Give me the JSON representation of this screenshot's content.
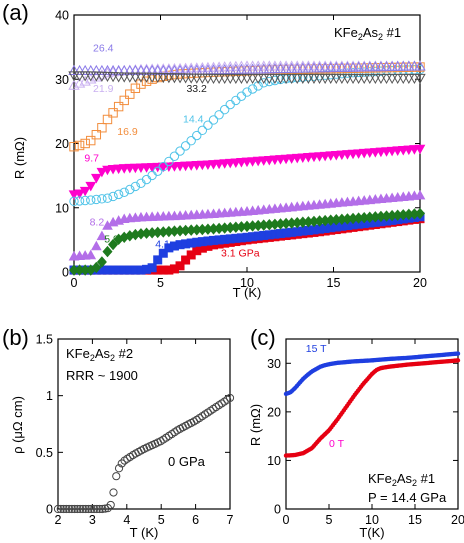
{
  "chart_data": [
    {
      "panel": "(a)",
      "type": "scatter",
      "sample_label": {
        "prefix": "KFe",
        "sub1": "2",
        "mid": "As",
        "sub2": "2",
        "suffix": " #1"
      },
      "xlabel": "T (K)",
      "ylabel": "R (mΩ)",
      "xlim": [
        0,
        20
      ],
      "ylim": [
        0,
        40
      ],
      "xticks": [
        "0",
        "5",
        "10",
        "15",
        "20"
      ],
      "yticks": [
        "0",
        "10",
        "20",
        "30",
        "40"
      ],
      "series": [
        {
          "name": "3.1 GPa",
          "color": "#e60012",
          "marker": "square-filled",
          "x": [
            0,
            2,
            4,
            5.5,
            6,
            6.5,
            7,
            7.5,
            8,
            9,
            10,
            12,
            14,
            16,
            18,
            20
          ],
          "y": [
            0.3,
            0.3,
            0.3,
            0.3,
            0.6,
            2,
            3.2,
            3.8,
            4.2,
            4.6,
            5,
            5.6,
            6.2,
            6.9,
            7.6,
            8.3
          ]
        },
        {
          "name": "4.1",
          "color": "#1f3fe0",
          "marker": "square-filled",
          "x": [
            0,
            2,
            4,
            4.5,
            5,
            5.5,
            6,
            7,
            8,
            10,
            12,
            14,
            16,
            18,
            20
          ],
          "y": [
            0.3,
            0.3,
            0.3,
            0.6,
            2.5,
            3.8,
            4.2,
            4.6,
            4.9,
            5.4,
            6,
            6.6,
            7.3,
            7.9,
            8.6
          ]
        },
        {
          "name": "5.9",
          "color": "#1e7a1e",
          "marker": "diamond-filled",
          "x": [
            0,
            1,
            1.5,
            2,
            2.5,
            3,
            3.5,
            4,
            5,
            6,
            8,
            10,
            12,
            14,
            16,
            18,
            20
          ],
          "y": [
            0.3,
            0.3,
            1,
            3.5,
            5,
            5.5,
            5.8,
            6,
            6.2,
            6.4,
            6.7,
            7.1,
            7.5,
            7.9,
            8.3,
            8.7,
            9.1
          ]
        },
        {
          "name": "8.2",
          "color": "#b36ee8",
          "marker": "triangle-up-filled",
          "x": [
            0,
            1,
            1.5,
            2,
            3,
            4,
            5,
            6,
            8,
            10,
            12,
            14,
            16,
            18,
            20
          ],
          "y": [
            2.4,
            2.6,
            5,
            7.5,
            8.3,
            8.5,
            8.6,
            8.7,
            9,
            9.4,
            9.9,
            10.4,
            10.9,
            11.4,
            11.9
          ]
        },
        {
          "name": "9.7",
          "color": "#ff00cc",
          "marker": "triangle-down-filled",
          "x": [
            0,
            0.5,
            1,
            1.5,
            2,
            3,
            4,
            6,
            8,
            10,
            12,
            14,
            16,
            18,
            20
          ],
          "y": [
            12.1,
            12.3,
            13.5,
            15.5,
            16,
            16.2,
            16.3,
            16.5,
            16.8,
            17.2,
            17.6,
            18,
            18.4,
            18.8,
            19.2
          ]
        },
        {
          "name": "14.4",
          "color": "#4fc3e8",
          "marker": "circle-open",
          "x": [
            0,
            1,
            2,
            3,
            4,
            5,
            6,
            7,
            8,
            9,
            10,
            11,
            12,
            14,
            16,
            18,
            20
          ],
          "y": [
            11,
            11.2,
            11.5,
            12.5,
            14,
            16,
            18.5,
            21,
            23.5,
            26,
            28,
            29.5,
            30,
            30.5,
            31,
            31.3,
            31.5
          ]
        },
        {
          "name": "16.9",
          "color": "#f28d3c",
          "marker": "square-open",
          "x": [
            0,
            0.5,
            1,
            1.5,
            2,
            2.5,
            3,
            3.5,
            4,
            4.5,
            5,
            6,
            8,
            10,
            12,
            14,
            16,
            18,
            20
          ],
          "y": [
            19.5,
            19.8,
            20.5,
            22,
            24,
            25.5,
            27,
            28.5,
            29.5,
            30,
            30.4,
            30.8,
            31.1,
            31.3,
            31.5,
            31.6,
            31.7,
            31.8,
            31.9
          ]
        },
        {
          "name": "21.9",
          "color": "#c9b0f0",
          "marker": "triangle-up-open",
          "x": [
            0,
            0.5,
            1,
            1.5,
            2,
            3,
            4,
            6,
            8,
            10,
            12,
            14,
            16,
            18,
            20
          ],
          "y": [
            29,
            29.5,
            30,
            30.5,
            31,
            31.3,
            31.5,
            31.6,
            31.8,
            32,
            32,
            32,
            32,
            32,
            32
          ]
        },
        {
          "name": "26.4",
          "color": "#8a7ae8",
          "marker": "triangle-up-open",
          "x": [
            0,
            1,
            2,
            3,
            4,
            6,
            8,
            10,
            12,
            14,
            16,
            18,
            20
          ],
          "y": [
            31.3,
            31.3,
            31.3,
            31.3,
            31.3,
            31.3,
            31.4,
            31.5,
            31.6,
            31.7,
            31.8,
            31.9,
            32
          ]
        },
        {
          "name": "33.2",
          "color": "#555555",
          "marker": "triangle-down-open",
          "x": [
            0,
            1,
            2,
            3,
            4,
            6,
            8,
            10,
            12,
            14,
            16,
            18,
            20
          ],
          "y": [
            30.6,
            30.6,
            30.5,
            30.4,
            30.4,
            30.3,
            30.2,
            30.2,
            30.2,
            30.2,
            30.2,
            30.2,
            30.2
          ]
        }
      ]
    },
    {
      "panel": "(b)",
      "type": "scatter",
      "sample_label": {
        "prefix": "KFe",
        "sub1": "2",
        "mid": "As",
        "sub2": "2",
        "suffix": " #2"
      },
      "rrr_label": "RRR ~ 1900",
      "pressure_label": "0 GPa",
      "xlabel": "T (K)",
      "ylabel": "ρ (μΩ cm)",
      "xlim": [
        2,
        7
      ],
      "ylim": [
        0,
        1.5
      ],
      "xticks": [
        "2",
        "3",
        "4",
        "5",
        "6",
        "7"
      ],
      "yticks": [
        "0",
        "0.5",
        "1",
        "1.5"
      ],
      "series": [
        {
          "name": "0 GPa",
          "color": "#444444",
          "marker": "circle-open",
          "x": [
            2,
            2.5,
            3,
            3.3,
            3.5,
            3.55,
            3.6,
            3.65,
            3.7,
            3.8,
            3.9,
            4,
            4.2,
            4.5,
            5,
            5.5,
            6,
            6.5,
            7
          ],
          "y": [
            0,
            0,
            0,
            0,
            0.01,
            0.05,
            0.12,
            0.22,
            0.3,
            0.38,
            0.42,
            0.44,
            0.48,
            0.53,
            0.6,
            0.7,
            0.78,
            0.88,
            0.98
          ]
        }
      ]
    },
    {
      "panel": "(c)",
      "type": "scatter",
      "sample_label": {
        "prefix": "KFe",
        "sub1": "2",
        "mid": "As",
        "sub2": "2",
        "suffix": " #1"
      },
      "pressure_label": "P = 14.4 GPa",
      "xlabel": "T(K)",
      "ylabel": "R (mΩ)",
      "xlim": [
        0,
        20
      ],
      "ylim": [
        0,
        35
      ],
      "xticks": [
        "0",
        "5",
        "10",
        "15",
        "20"
      ],
      "yticks": [
        "0",
        "10",
        "20",
        "30"
      ],
      "series": [
        {
          "name": "15 T",
          "color": "#1f3fe0",
          "marker": "dot",
          "x": [
            0,
            0.5,
            1,
            1.5,
            2,
            2.5,
            3,
            3.5,
            4,
            4.5,
            5,
            6,
            8,
            10,
            12,
            14,
            16,
            18,
            20
          ],
          "y": [
            23.7,
            24,
            24.8,
            25.8,
            26.8,
            27.6,
            28.3,
            28.8,
            29.3,
            29.6,
            29.8,
            30.1,
            30.4,
            30.6,
            30.9,
            31.1,
            31.4,
            31.7,
            32
          ]
        },
        {
          "name": "0 T",
          "color": "#e60012",
          "marker": "dot",
          "x": [
            0,
            1,
            2,
            3,
            3.5,
            4,
            5,
            6,
            7,
            8,
            9,
            10,
            10.5,
            11,
            12,
            14,
            16,
            18,
            20
          ],
          "y": [
            11,
            11.1,
            11.5,
            12.5,
            13.5,
            14.5,
            16.2,
            18.5,
            21,
            23.5,
            25.8,
            27.8,
            28.6,
            29,
            29.3,
            29.7,
            30,
            30.3,
            30.6
          ]
        }
      ]
    }
  ],
  "annotations": {
    "a": [
      {
        "text": "26.4",
        "color": "#8a7ae8",
        "x": 1.1,
        "y": 34.3
      },
      {
        "text": "21.9",
        "color": "#c9b0f0",
        "x": 1.1,
        "y": 28.0
      },
      {
        "text": "33.2",
        "color": "#222222",
        "x": 6.5,
        "y": 28.0
      },
      {
        "text": "16.9",
        "color": "#f28d3c",
        "x": 2.5,
        "y": 21.3
      },
      {
        "text": "14.4",
        "color": "#4fc3e8",
        "x": 6.3,
        "y": 23.3
      },
      {
        "text": "9.7",
        "color": "#ff00cc",
        "x": 0.6,
        "y": 17.2
      },
      {
        "text": "8.2",
        "color": "#b36ee8",
        "x": 0.9,
        "y": 7.2
      },
      {
        "text": "5.9",
        "color": "#1e7a1e",
        "x": 1.75,
        "y": 4.6
      },
      {
        "text": "4.1",
        "color": "#1f3fe0",
        "x": 4.7,
        "y": 3.8
      },
      {
        "text": "3.1 GPa",
        "color": "#e60012",
        "x": 8.5,
        "y": 2.4
      }
    ],
    "c": [
      {
        "text": "15 T",
        "color": "#1f3fe0",
        "x": 2.3,
        "y": 32.3
      },
      {
        "text": "0 T",
        "color": "#ff00cc",
        "x": 5.0,
        "y": 12.8
      }
    ]
  }
}
